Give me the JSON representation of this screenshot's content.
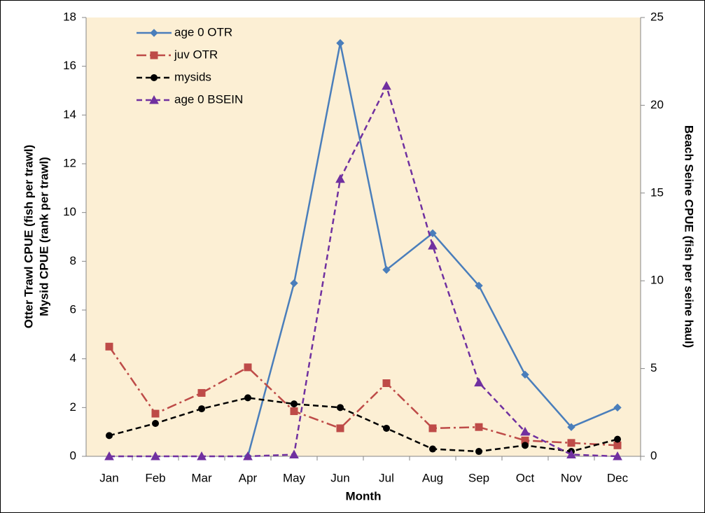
{
  "chart_data": {
    "type": "line",
    "xlabel": "Month",
    "ylabel": [
      "Otter Trawl CPUE (fish per trawl)",
      "Mysid CPUE (rank per trawl)"
    ],
    "y2label": "Beach Seine CPUE (fish per seine haul)",
    "categories": [
      "Jan",
      "Feb",
      "Mar",
      "Apr",
      "May",
      "Jun",
      "Jul",
      "Aug",
      "Sep",
      "Oct",
      "Nov",
      "Dec"
    ],
    "series": [
      {
        "name": "age 0 OTR",
        "color": "#4a7ebb",
        "dash": "solid",
        "marker": "diamond",
        "values": [
          null,
          null,
          null,
          0,
          7.1,
          16.95,
          7.65,
          9.15,
          7.0,
          3.35,
          1.2,
          2.0
        ]
      },
      {
        "name": "juv OTR",
        "color": "#be4b48",
        "dash": "dashdot",
        "marker": "square",
        "values": [
          4.5,
          1.75,
          2.6,
          3.65,
          1.85,
          1.15,
          3.0,
          1.15,
          1.2,
          0.65,
          0.55,
          0.45
        ]
      },
      {
        "name": "mysids",
        "color": "#000000",
        "dash": "dashed",
        "marker": "circle",
        "values": [
          0.85,
          1.35,
          1.95,
          2.4,
          2.15,
          2.0,
          1.15,
          0.3,
          0.2,
          0.45,
          0.2,
          0.7
        ]
      },
      {
        "name": "age 0 BSEIN",
        "color": "#7030a0",
        "dash": "dashed",
        "marker": "triangle",
        "axis": "y2",
        "values": [
          0,
          0,
          0,
          0,
          0.1,
          15.8,
          21.1,
          12.0,
          4.2,
          1.4,
          0.1,
          0
        ]
      }
    ],
    "ylim": [
      0,
      18
    ],
    "yticks": [
      0,
      2,
      4,
      6,
      8,
      10,
      12,
      14,
      16,
      18
    ],
    "y2lim": [
      0,
      25
    ],
    "y2ticks": [
      0,
      5,
      10,
      15,
      20,
      25
    ],
    "legend": "upper left",
    "background": "#fcefd4"
  }
}
